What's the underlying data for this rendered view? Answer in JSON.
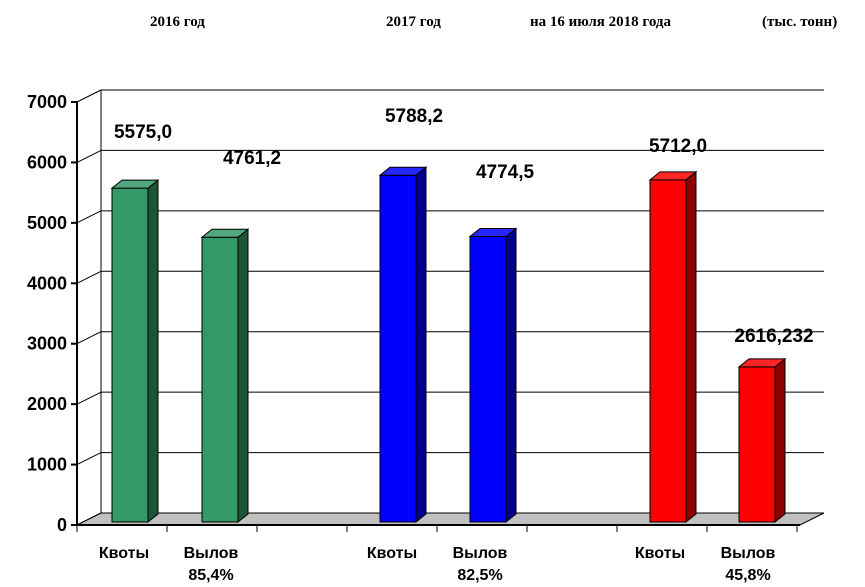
{
  "chart_data": {
    "type": "bar",
    "header": {
      "year_2016": "2016  год",
      "year_2017": "2017  год",
      "year_2018": "на 16 июля 2018 года",
      "units": "(тыс. тонн)"
    },
    "ylim": [
      0,
      7000
    ],
    "yticks": [
      0,
      1000,
      2000,
      3000,
      4000,
      5000,
      6000,
      7000
    ],
    "grid": true,
    "groups": [
      {
        "name": "2016",
        "color": "#339966",
        "bars": [
          {
            "category": "Квоты",
            "value": 5575.0,
            "label": "5575,0",
            "pct": ""
          },
          {
            "category": "Вылов",
            "value": 4761.2,
            "label": "4761,2",
            "pct": "85,4%"
          }
        ]
      },
      {
        "name": "2017",
        "color": "#0000ff",
        "bars": [
          {
            "category": "Квоты",
            "value": 5788.2,
            "label": "5788,2",
            "pct": ""
          },
          {
            "category": "Вылов",
            "value": 4774.5,
            "label": "4774,5",
            "pct": "82,5%"
          }
        ]
      },
      {
        "name": "2018",
        "color": "#ff0000",
        "bars": [
          {
            "category": "Квоты",
            "value": 5712.0,
            "label": "5712,0",
            "pct": ""
          },
          {
            "category": "Вылов",
            "value": 2616.232,
            "label": "2616,232",
            "pct": "45,8%"
          }
        ]
      }
    ]
  }
}
